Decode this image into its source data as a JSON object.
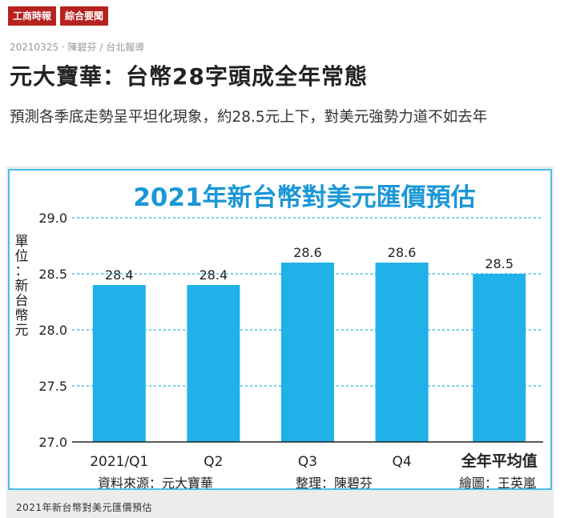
{
  "tags": [
    "工商時報",
    "綜合要聞"
  ],
  "meta": {
    "date": "20210325",
    "author": "陳碧芬",
    "location": "台北報導"
  },
  "article": {
    "title": "元大寶華：台幣28字頭成全年常態",
    "subtitle": "預測各季底走勢呈平坦化現象，約28.5元上下，對美元強勢力道不如去年"
  },
  "chart_data": {
    "type": "bar",
    "title": "2021年新台幣對美元匯價預估",
    "ylabel": "單位：新台幣元",
    "categories": [
      "2021/Q1",
      "Q2",
      "Q3",
      "Q4",
      "全年平均值"
    ],
    "values": [
      28.4,
      28.4,
      28.6,
      28.6,
      28.5
    ],
    "value_labels": [
      "28.4",
      "28.4",
      "28.6",
      "28.6",
      "28.5"
    ],
    "yticks": [
      "29.0",
      "28.5",
      "28.0",
      "27.5",
      "27.0"
    ],
    "ylim": [
      27.0,
      29.0
    ],
    "grid": true,
    "source": "資料來源：元大寶華",
    "editor": "整理：陳碧芬",
    "illustrator": "繪圖：王英嵐",
    "bar_color": "#1fb1e8",
    "title_color": "#1a97d6"
  },
  "caption": "2021年新台幣對美元匯價預估"
}
